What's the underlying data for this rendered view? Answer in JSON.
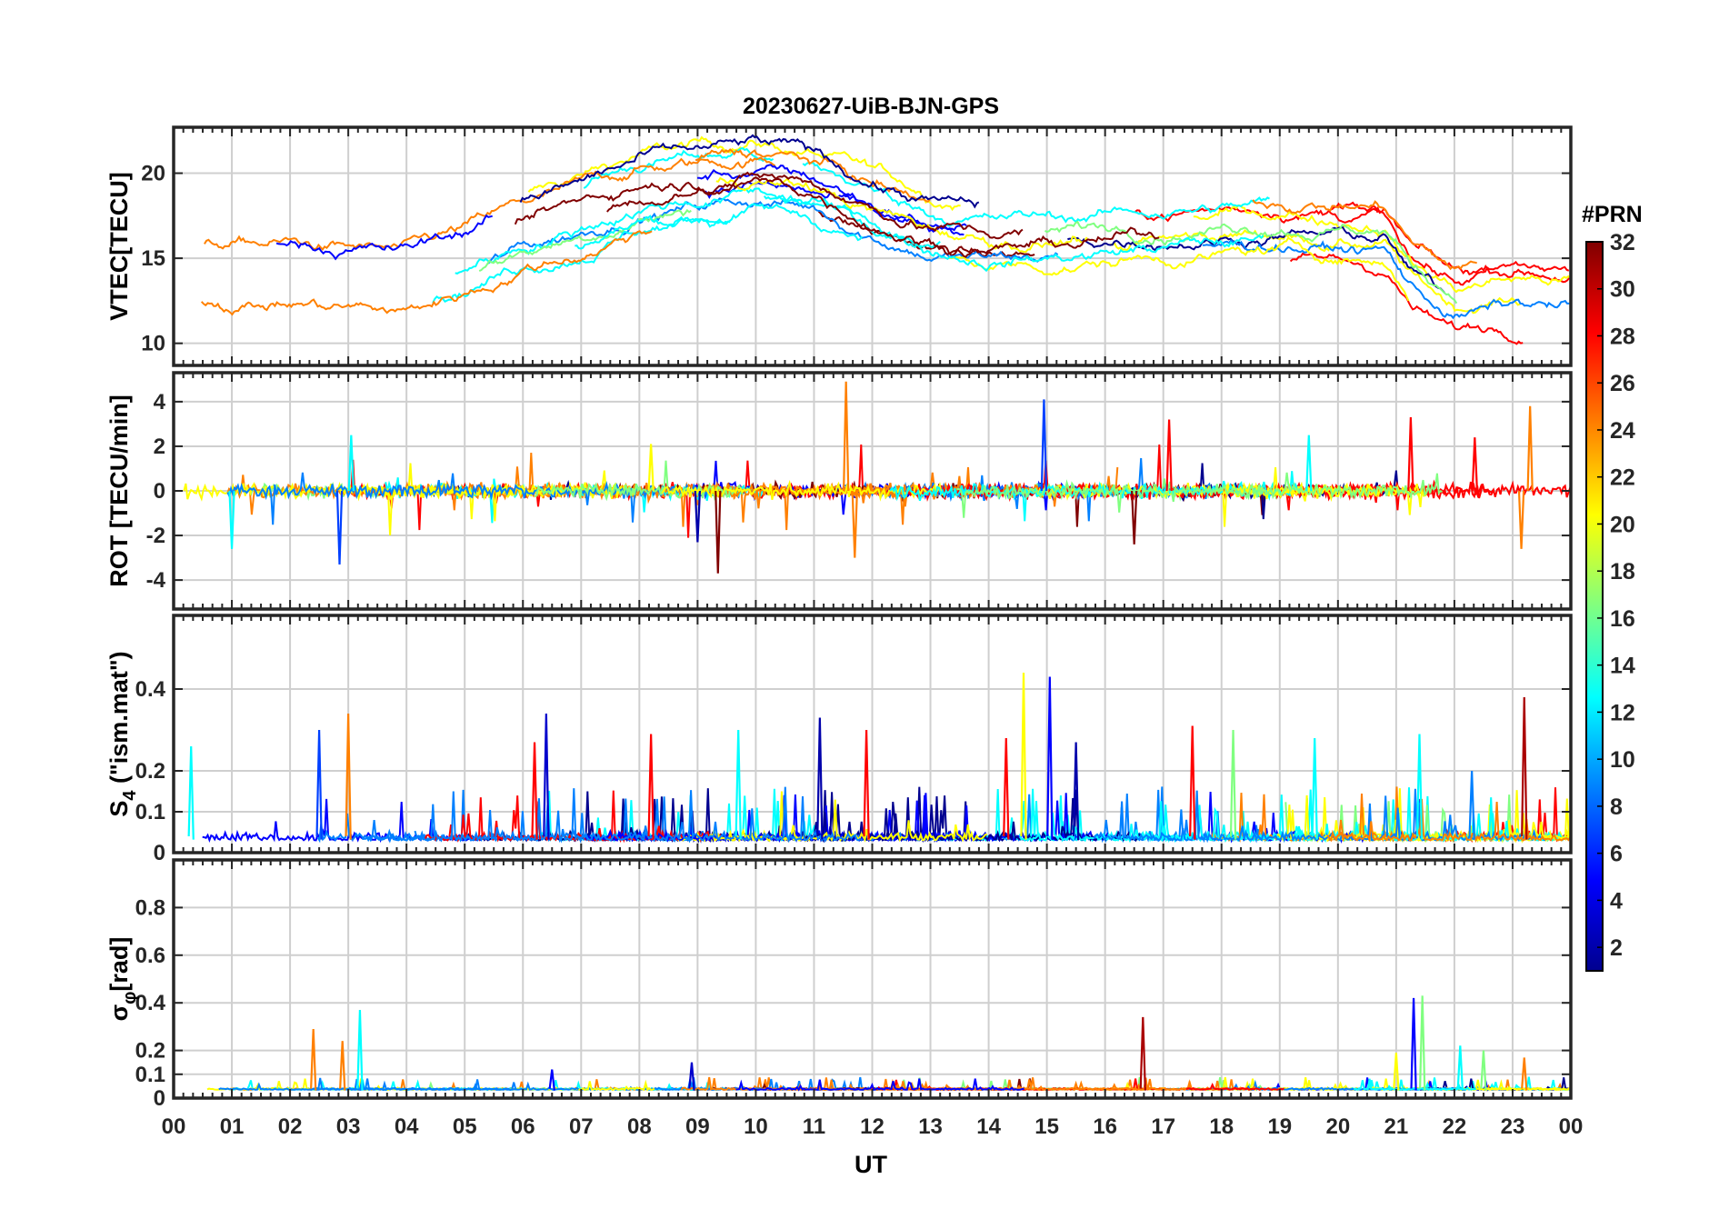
{
  "chart_data": {
    "type": "line",
    "title": "20230627-UiB-BJN-GPS",
    "xlabel": "UT",
    "xlim": [
      0,
      24
    ],
    "xticks": [
      "00",
      "01",
      "02",
      "03",
      "04",
      "05",
      "06",
      "07",
      "08",
      "09",
      "10",
      "11",
      "12",
      "13",
      "14",
      "15",
      "16",
      "17",
      "18",
      "19",
      "20",
      "21",
      "22",
      "23",
      "00"
    ],
    "colorbar": {
      "label": "#PRN",
      "range": [
        1,
        32
      ],
      "ticks": [
        "2",
        "4",
        "6",
        "8",
        "10",
        "12",
        "14",
        "16",
        "18",
        "20",
        "22",
        "24",
        "26",
        "28",
        "30",
        "32"
      ],
      "colormap": [
        "#00008f",
        "#0000ff",
        "#0080ff",
        "#00ffff",
        "#80ff80",
        "#ffff00",
        "#ff8000",
        "#ff0000",
        "#800000"
      ]
    },
    "panels": [
      {
        "id": "vtec",
        "ylabel": "VTEC[TECU]",
        "ylim": [
          8.7,
          22.7
        ],
        "yticks": [
          10,
          15,
          20
        ],
        "ytick_labels": [
          "10",
          "15",
          "20"
        ],
        "series_description": "VTEC per GPS satellite (PRN 1-32), values roughly 10-22 TECU, peak near 09-11 UT and 20 UT",
        "baseline": [
          [
            0,
            14.5
          ],
          [
            2,
            14.5
          ],
          [
            3,
            14.2
          ],
          [
            4,
            13.8
          ],
          [
            5,
            15.0
          ],
          [
            6,
            16.5
          ],
          [
            7,
            17.5
          ],
          [
            8,
            18.8
          ],
          [
            9,
            19.2
          ],
          [
            10,
            19.6
          ],
          [
            11,
            19.0
          ],
          [
            12,
            17.6
          ],
          [
            13,
            16.5
          ],
          [
            14,
            16.0
          ],
          [
            15,
            16.0
          ],
          [
            16,
            16.2
          ],
          [
            17,
            16.5
          ],
          [
            18,
            16.6
          ],
          [
            19,
            16.8
          ],
          [
            20,
            16.5
          ],
          [
            20.8,
            16.3
          ],
          [
            21.3,
            14.0
          ],
          [
            22,
            12.5
          ],
          [
            23,
            13.0
          ],
          [
            24,
            12.8
          ]
        ]
      },
      {
        "id": "rot",
        "ylabel": "ROT [TECU/min]",
        "ylim": [
          -5.3,
          5.3
        ],
        "yticks": [
          -4,
          -2,
          0,
          2,
          4
        ],
        "ytick_labels": [
          "-4",
          "-2",
          "0",
          "2",
          "4"
        ],
        "series_description": "Rate of TEC per satellite, mostly within ±1 TECU/min, spikes to about +5 near 11.6 UT and -3.7 near 09.4 UT"
      },
      {
        "id": "s4",
        "ylabel": "S4 (\"ism.mat\")",
        "ylabel_main": "S",
        "ylabel_sub": "4",
        "ylabel_rest": " (\"ism.mat\")",
        "ylim": [
          0,
          0.58
        ],
        "yticks": [
          0,
          0.1,
          0.2,
          0.4
        ],
        "ytick_labels": [
          "0",
          "0.1",
          "0.2",
          "0.4"
        ],
        "series_description": "Amplitude scintillation index S4 per satellite, baseline about 0.03, bursts up to about 0.43 near 14.8 UT"
      },
      {
        "id": "sigma",
        "ylabel": "σφ[rad]",
        "ylabel_main": "σ",
        "ylabel_sub": "φ",
        "ylabel_rest": "[rad]",
        "ylim": [
          0,
          1.0
        ],
        "yticks": [
          0,
          0.1,
          0.2,
          0.4,
          0.6,
          0.8
        ],
        "ytick_labels": [
          "0",
          "0.1",
          "0.2",
          "0.4",
          "0.6",
          "0.8"
        ],
        "series_description": "Phase scintillation index per satellite, baseline about 0.04 rad, peaks near 0.37 at 03.2 UT and 0.42 at 21.3 UT"
      }
    ],
    "peaks": {
      "rot": [
        [
          3.05,
          2.5,
          "#00ffff"
        ],
        [
          2.85,
          -3.3,
          "#0040ff"
        ],
        [
          11.55,
          4.9,
          "#ff8000"
        ],
        [
          11.7,
          -3.0,
          "#ff8000"
        ],
        [
          9.35,
          -3.7,
          "#800000"
        ],
        [
          9.0,
          -2.3,
          "#0000aa"
        ],
        [
          14.95,
          4.1,
          "#0040ff"
        ],
        [
          17.1,
          3.2,
          "#ff0000"
        ],
        [
          16.5,
          -2.4,
          "#800000"
        ],
        [
          21.25,
          3.3,
          "#ff0000"
        ],
        [
          22.35,
          2.4,
          "#ff0000"
        ],
        [
          23.3,
          3.8,
          "#ff8000"
        ],
        [
          23.15,
          -2.6,
          "#ff8000"
        ],
        [
          19.5,
          2.5,
          "#00ffff"
        ],
        [
          1.0,
          -2.6,
          "#00ffff"
        ],
        [
          8.2,
          2.1,
          "#ffff00"
        ]
      ],
      "s4": [
        [
          3.0,
          0.34,
          "#ff8000"
        ],
        [
          2.5,
          0.3,
          "#0040ff"
        ],
        [
          6.4,
          0.34,
          "#0000cc"
        ],
        [
          6.2,
          0.27,
          "#ff0000"
        ],
        [
          8.2,
          0.29,
          "#ff0000"
        ],
        [
          9.7,
          0.3,
          "#00ffff"
        ],
        [
          11.1,
          0.33,
          "#0000aa"
        ],
        [
          11.9,
          0.3,
          "#ff0000"
        ],
        [
          14.6,
          0.44,
          "#ffff00"
        ],
        [
          15.05,
          0.43,
          "#0000ff"
        ],
        [
          14.3,
          0.28,
          "#ff0000"
        ],
        [
          15.5,
          0.27,
          "#0000aa"
        ],
        [
          17.5,
          0.31,
          "#ff0000"
        ],
        [
          18.2,
          0.3,
          "#80ff80"
        ],
        [
          19.6,
          0.28,
          "#00ffff"
        ],
        [
          21.4,
          0.29,
          "#00ffff"
        ],
        [
          23.2,
          0.38,
          "#aa0000"
        ],
        [
          22.3,
          0.2,
          "#0080ff"
        ],
        [
          0.3,
          0.26,
          "#00ffff"
        ]
      ],
      "sigma": [
        [
          2.4,
          0.29,
          "#ff8000"
        ],
        [
          3.2,
          0.37,
          "#00ffff"
        ],
        [
          2.9,
          0.24,
          "#ff8000"
        ],
        [
          6.5,
          0.12,
          "#0000ff"
        ],
        [
          8.9,
          0.15,
          "#0000cc"
        ],
        [
          16.65,
          0.34,
          "#aa0000"
        ],
        [
          21.3,
          0.42,
          "#0000ff"
        ],
        [
          21.45,
          0.43,
          "#80ff80"
        ],
        [
          21.0,
          0.19,
          "#ffff00"
        ],
        [
          22.1,
          0.22,
          "#00ffff"
        ],
        [
          22.5,
          0.2,
          "#80ff80"
        ],
        [
          23.2,
          0.17,
          "#ff8000"
        ]
      ]
    }
  }
}
